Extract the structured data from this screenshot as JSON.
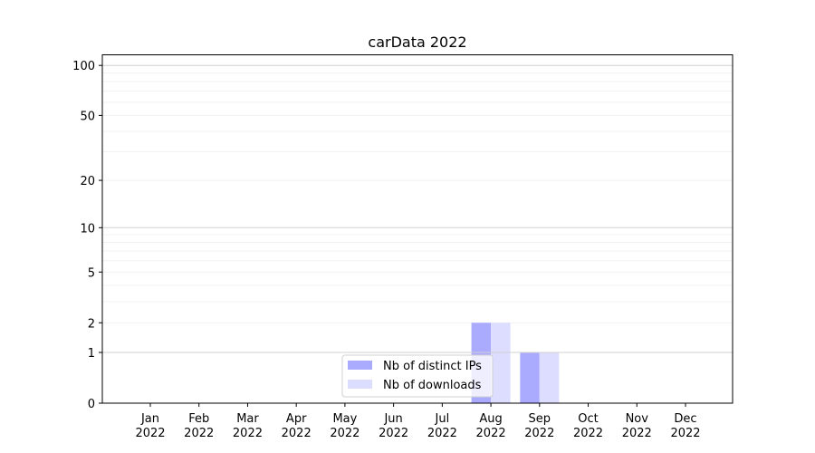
{
  "chart_data": {
    "type": "bar",
    "title": "carData 2022",
    "xlabel": "",
    "ylabel": "",
    "yscale": "symlog",
    "ylim": [
      0,
      116
    ],
    "yticks": [
      0,
      1,
      2,
      5,
      10,
      20,
      50,
      100
    ],
    "grid": true,
    "legend_position": "bottom-center",
    "categories": [
      "Jan\n2022",
      "Feb\n2022",
      "Mar\n2022",
      "Apr\n2022",
      "May\n2022",
      "Jun\n2022",
      "Jul\n2022",
      "Aug\n2022",
      "Sep\n2022",
      "Oct\n2022",
      "Nov\n2022",
      "Dec\n2022"
    ],
    "series": [
      {
        "name": "Nb of distinct IPs",
        "color": "#aaaaff",
        "values": [
          0,
          0,
          0,
          0,
          0,
          0,
          0,
          2,
          1,
          0,
          0,
          0
        ]
      },
      {
        "name": "Nb of downloads",
        "color": "#ddddff",
        "values": [
          0,
          0,
          0,
          0,
          0,
          0,
          0,
          2,
          1,
          0,
          0,
          0
        ]
      }
    ]
  }
}
